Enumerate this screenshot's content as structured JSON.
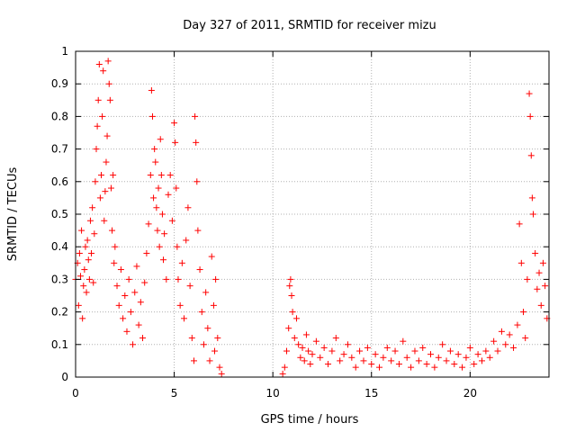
{
  "chart_data": {
    "type": "scatter",
    "title": "Day 327 of 2011, SRMTID for receiver mizu",
    "xlabel": "GPS time / hours",
    "ylabel": "SRMTID / TECUs",
    "xlim": [
      0,
      24
    ],
    "ylim": [
      0,
      1
    ],
    "xticks": [
      0,
      5,
      10,
      15,
      20
    ],
    "xtick_labels": [
      "0",
      "5",
      "10",
      "15",
      "20"
    ],
    "yticks": [
      0,
      0.1,
      0.2,
      0.3,
      0.4,
      0.5,
      0.6,
      0.7,
      0.8,
      0.9,
      1
    ],
    "ytick_labels": [
      "0",
      "0.1",
      "0.2",
      "0.3",
      "0.4",
      "0.5",
      "0.6",
      "0.7",
      "0.8",
      "0.9",
      "1"
    ],
    "grid": true,
    "marker": "+",
    "colors": {
      "series": "#ff0000",
      "grid": "#b0b0b0",
      "axis": "#000000"
    },
    "series": [
      {
        "name": "SRMTID",
        "points": [
          [
            0.0,
            0.3
          ],
          [
            0.1,
            0.35
          ],
          [
            0.15,
            0.22
          ],
          [
            0.2,
            0.38
          ],
          [
            0.25,
            0.31
          ],
          [
            0.3,
            0.45
          ],
          [
            0.35,
            0.18
          ],
          [
            0.4,
            0.28
          ],
          [
            0.45,
            0.33
          ],
          [
            0.5,
            0.4
          ],
          [
            0.55,
            0.26
          ],
          [
            0.6,
            0.42
          ],
          [
            0.65,
            0.36
          ],
          [
            0.7,
            0.3
          ],
          [
            0.75,
            0.48
          ],
          [
            0.8,
            0.38
          ],
          [
            0.85,
            0.52
          ],
          [
            0.9,
            0.29
          ],
          [
            0.95,
            0.44
          ],
          [
            1.0,
            0.6
          ],
          [
            1.05,
            0.7
          ],
          [
            1.1,
            0.77
          ],
          [
            1.15,
            0.85
          ],
          [
            1.2,
            0.96
          ],
          [
            1.25,
            0.55
          ],
          [
            1.3,
            0.62
          ],
          [
            1.35,
            0.8
          ],
          [
            1.4,
            0.94
          ],
          [
            1.45,
            0.48
          ],
          [
            1.5,
            0.57
          ],
          [
            1.55,
            0.66
          ],
          [
            1.6,
            0.74
          ],
          [
            1.65,
            0.97
          ],
          [
            1.7,
            0.9
          ],
          [
            1.75,
            0.85
          ],
          [
            1.8,
            0.58
          ],
          [
            1.85,
            0.45
          ],
          [
            1.9,
            0.62
          ],
          [
            1.95,
            0.35
          ],
          [
            2.0,
            0.4
          ],
          [
            2.1,
            0.28
          ],
          [
            2.2,
            0.22
          ],
          [
            2.3,
            0.33
          ],
          [
            2.4,
            0.18
          ],
          [
            2.5,
            0.25
          ],
          [
            2.6,
            0.14
          ],
          [
            2.7,
            0.3
          ],
          [
            2.8,
            0.2
          ],
          [
            2.9,
            0.1
          ],
          [
            3.0,
            0.26
          ],
          [
            3.1,
            0.34
          ],
          [
            3.2,
            0.16
          ],
          [
            3.3,
            0.23
          ],
          [
            3.4,
            0.12
          ],
          [
            3.5,
            0.29
          ],
          [
            3.6,
            0.38
          ],
          [
            3.7,
            0.47
          ],
          [
            3.8,
            0.62
          ],
          [
            3.85,
            0.88
          ],
          [
            3.9,
            0.8
          ],
          [
            3.95,
            0.55
          ],
          [
            4.0,
            0.7
          ],
          [
            4.05,
            0.66
          ],
          [
            4.1,
            0.52
          ],
          [
            4.15,
            0.45
          ],
          [
            4.2,
            0.58
          ],
          [
            4.25,
            0.4
          ],
          [
            4.3,
            0.73
          ],
          [
            4.35,
            0.62
          ],
          [
            4.4,
            0.5
          ],
          [
            4.45,
            0.36
          ],
          [
            4.5,
            0.44
          ],
          [
            4.6,
            0.3
          ],
          [
            4.7,
            0.56
          ],
          [
            4.8,
            0.62
          ],
          [
            4.9,
            0.48
          ],
          [
            5.0,
            0.78
          ],
          [
            5.05,
            0.72
          ],
          [
            5.1,
            0.58
          ],
          [
            5.15,
            0.4
          ],
          [
            5.2,
            0.3
          ],
          [
            5.3,
            0.22
          ],
          [
            5.4,
            0.35
          ],
          [
            5.5,
            0.18
          ],
          [
            5.6,
            0.42
          ],
          [
            5.7,
            0.52
          ],
          [
            5.8,
            0.28
          ],
          [
            5.9,
            0.12
          ],
          [
            6.0,
            0.05
          ],
          [
            6.05,
            0.8
          ],
          [
            6.1,
            0.72
          ],
          [
            6.15,
            0.6
          ],
          [
            6.2,
            0.45
          ],
          [
            6.3,
            0.33
          ],
          [
            6.4,
            0.2
          ],
          [
            6.5,
            0.1
          ],
          [
            6.6,
            0.26
          ],
          [
            6.7,
            0.15
          ],
          [
            6.8,
            0.05
          ],
          [
            6.9,
            0.37
          ],
          [
            7.0,
            0.22
          ],
          [
            7.05,
            0.08
          ],
          [
            7.1,
            0.3
          ],
          [
            7.2,
            0.12
          ],
          [
            7.3,
            0.03
          ],
          [
            7.4,
            0.01
          ],
          [
            10.5,
            0.01
          ],
          [
            10.6,
            0.03
          ],
          [
            10.7,
            0.08
          ],
          [
            10.8,
            0.15
          ],
          [
            10.85,
            0.28
          ],
          [
            10.9,
            0.3
          ],
          [
            10.95,
            0.25
          ],
          [
            11.0,
            0.2
          ],
          [
            11.1,
            0.12
          ],
          [
            11.2,
            0.18
          ],
          [
            11.3,
            0.1
          ],
          [
            11.4,
            0.06
          ],
          [
            11.5,
            0.09
          ],
          [
            11.6,
            0.05
          ],
          [
            11.7,
            0.13
          ],
          [
            11.8,
            0.08
          ],
          [
            11.9,
            0.04
          ],
          [
            12.0,
            0.07
          ],
          [
            12.2,
            0.11
          ],
          [
            12.4,
            0.06
          ],
          [
            12.6,
            0.09
          ],
          [
            12.8,
            0.04
          ],
          [
            13.0,
            0.08
          ],
          [
            13.2,
            0.12
          ],
          [
            13.4,
            0.05
          ],
          [
            13.6,
            0.07
          ],
          [
            13.8,
            0.1
          ],
          [
            14.0,
            0.06
          ],
          [
            14.2,
            0.03
          ],
          [
            14.4,
            0.08
          ],
          [
            14.6,
            0.05
          ],
          [
            14.8,
            0.09
          ],
          [
            15.0,
            0.04
          ],
          [
            15.2,
            0.07
          ],
          [
            15.4,
            0.03
          ],
          [
            15.6,
            0.06
          ],
          [
            15.8,
            0.09
          ],
          [
            16.0,
            0.05
          ],
          [
            16.2,
            0.08
          ],
          [
            16.4,
            0.04
          ],
          [
            16.6,
            0.11
          ],
          [
            16.8,
            0.06
          ],
          [
            17.0,
            0.03
          ],
          [
            17.2,
            0.08
          ],
          [
            17.4,
            0.05
          ],
          [
            17.6,
            0.09
          ],
          [
            17.8,
            0.04
          ],
          [
            18.0,
            0.07
          ],
          [
            18.2,
            0.03
          ],
          [
            18.4,
            0.06
          ],
          [
            18.6,
            0.1
          ],
          [
            18.8,
            0.05
          ],
          [
            19.0,
            0.08
          ],
          [
            19.2,
            0.04
          ],
          [
            19.4,
            0.07
          ],
          [
            19.6,
            0.03
          ],
          [
            19.8,
            0.06
          ],
          [
            20.0,
            0.09
          ],
          [
            20.2,
            0.04
          ],
          [
            20.4,
            0.07
          ],
          [
            20.6,
            0.05
          ],
          [
            20.8,
            0.08
          ],
          [
            21.0,
            0.06
          ],
          [
            21.2,
            0.11
          ],
          [
            21.4,
            0.08
          ],
          [
            21.6,
            0.14
          ],
          [
            21.8,
            0.1
          ],
          [
            22.0,
            0.13
          ],
          [
            22.2,
            0.09
          ],
          [
            22.4,
            0.16
          ],
          [
            22.5,
            0.47
          ],
          [
            22.6,
            0.35
          ],
          [
            22.7,
            0.2
          ],
          [
            22.8,
            0.12
          ],
          [
            22.9,
            0.3
          ],
          [
            23.0,
            0.87
          ],
          [
            23.05,
            0.8
          ],
          [
            23.1,
            0.68
          ],
          [
            23.15,
            0.55
          ],
          [
            23.2,
            0.5
          ],
          [
            23.3,
            0.38
          ],
          [
            23.4,
            0.27
          ],
          [
            23.5,
            0.32
          ],
          [
            23.6,
            0.22
          ],
          [
            23.7,
            0.35
          ],
          [
            23.8,
            0.28
          ],
          [
            23.9,
            0.18
          ]
        ]
      }
    ]
  }
}
